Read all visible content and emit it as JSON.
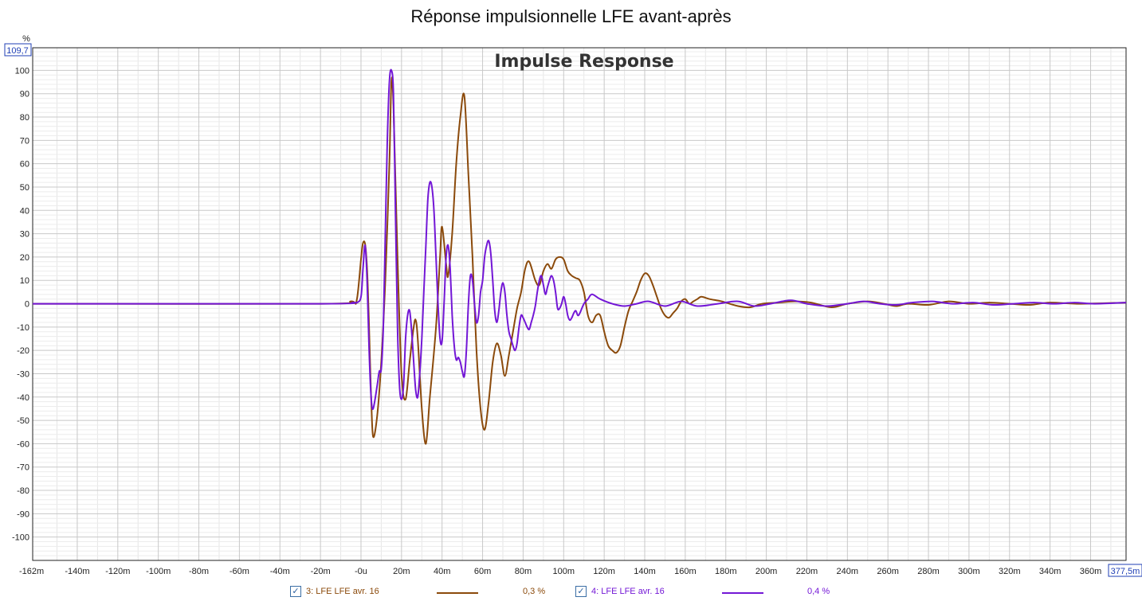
{
  "page_title": "Réponse impulsionnelle LFE avant-après",
  "chart_data": {
    "type": "line",
    "title": "Impulse Response",
    "y_unit": "%",
    "xlim": [
      -162,
      377.5
    ],
    "ylim": [
      -110,
      109.7
    ],
    "x_end_label": "-162m",
    "x_max_label": "377,5m",
    "y_max_label": "109,7",
    "x_ticks": [
      {
        "v": -140,
        "label": "-140m"
      },
      {
        "v": -120,
        "label": "-120m"
      },
      {
        "v": -100,
        "label": "-100m"
      },
      {
        "v": -80,
        "label": "-80m"
      },
      {
        "v": -60,
        "label": "-60m"
      },
      {
        "v": -40,
        "label": "-40m"
      },
      {
        "v": -20,
        "label": "-20m"
      },
      {
        "v": 0,
        "label": "-0u"
      },
      {
        "v": 20,
        "label": "20m"
      },
      {
        "v": 40,
        "label": "40m"
      },
      {
        "v": 60,
        "label": "60m"
      },
      {
        "v": 80,
        "label": "80m"
      },
      {
        "v": 100,
        "label": "100m"
      },
      {
        "v": 120,
        "label": "120m"
      },
      {
        "v": 140,
        "label": "140m"
      },
      {
        "v": 160,
        "label": "160m"
      },
      {
        "v": 180,
        "label": "180m"
      },
      {
        "v": 200,
        "label": "200m"
      },
      {
        "v": 220,
        "label": "220m"
      },
      {
        "v": 240,
        "label": "240m"
      },
      {
        "v": 260,
        "label": "260m"
      },
      {
        "v": 280,
        "label": "280m"
      },
      {
        "v": 300,
        "label": "300m"
      },
      {
        "v": 320,
        "label": "320m"
      },
      {
        "v": 340,
        "label": "340m"
      },
      {
        "v": 360,
        "label": "360m"
      }
    ],
    "y_ticks": [
      100,
      90,
      80,
      70,
      60,
      50,
      40,
      30,
      20,
      10,
      0,
      -10,
      -20,
      -30,
      -40,
      -50,
      -60,
      -70,
      -80,
      -90,
      -100
    ],
    "grid": true,
    "legend_position": "bottom",
    "series": [
      {
        "name": "3: LFE LFE avr. 16",
        "value_label": "0,3 %",
        "color": "#8b4a0b",
        "points": [
          [
            -162,
            0
          ],
          [
            -20,
            0
          ],
          [
            -5,
            1
          ],
          [
            -2,
            2
          ],
          [
            1,
            26
          ],
          [
            3,
            15
          ],
          [
            5,
            -40
          ],
          [
            6,
            -57
          ],
          [
            8,
            -48
          ],
          [
            10,
            -25
          ],
          [
            12,
            10
          ],
          [
            14,
            60
          ],
          [
            15,
            95
          ],
          [
            16,
            85
          ],
          [
            18,
            20
          ],
          [
            20,
            -30
          ],
          [
            22,
            -41
          ],
          [
            24,
            -25
          ],
          [
            26,
            -10
          ],
          [
            27,
            -7
          ],
          [
            28,
            -15
          ],
          [
            30,
            -45
          ],
          [
            32,
            -60
          ],
          [
            34,
            -40
          ],
          [
            37,
            -10
          ],
          [
            39,
            20
          ],
          [
            40,
            33
          ],
          [
            42,
            17
          ],
          [
            43,
            12
          ],
          [
            45,
            30
          ],
          [
            47,
            60
          ],
          [
            49,
            80
          ],
          [
            51,
            89
          ],
          [
            53,
            55
          ],
          [
            55,
            20
          ],
          [
            57,
            -20
          ],
          [
            59,
            -45
          ],
          [
            61,
            -54
          ],
          [
            63,
            -42
          ],
          [
            65,
            -25
          ],
          [
            67,
            -17
          ],
          [
            69,
            -22
          ],
          [
            71,
            -31
          ],
          [
            73,
            -22
          ],
          [
            75,
            -12
          ],
          [
            77,
            -2
          ],
          [
            79,
            5
          ],
          [
            81,
            15
          ],
          [
            83,
            18
          ],
          [
            86,
            10
          ],
          [
            88,
            8
          ],
          [
            90,
            14
          ],
          [
            92,
            17
          ],
          [
            94,
            15
          ],
          [
            96,
            19
          ],
          [
            98,
            20
          ],
          [
            100,
            19
          ],
          [
            102,
            14
          ],
          [
            104,
            12
          ],
          [
            106,
            11
          ],
          [
            108,
            10
          ],
          [
            110,
            5
          ],
          [
            112,
            -5
          ],
          [
            114,
            -8
          ],
          [
            116,
            -5
          ],
          [
            118,
            -5
          ],
          [
            120,
            -12
          ],
          [
            122,
            -18
          ],
          [
            124,
            -20
          ],
          [
            126,
            -21
          ],
          [
            128,
            -18
          ],
          [
            130,
            -10
          ],
          [
            132,
            -3
          ],
          [
            134,
            1
          ],
          [
            136,
            5
          ],
          [
            138,
            10
          ],
          [
            140,
            13
          ],
          [
            142,
            12
          ],
          [
            144,
            8
          ],
          [
            146,
            3
          ],
          [
            148,
            -2
          ],
          [
            150,
            -5
          ],
          [
            152,
            -6
          ],
          [
            154,
            -4
          ],
          [
            156,
            -2
          ],
          [
            158,
            1
          ],
          [
            160,
            2
          ],
          [
            162,
            0
          ],
          [
            164,
            1
          ],
          [
            166,
            2
          ],
          [
            168,
            3
          ],
          [
            172,
            2
          ],
          [
            178,
            1
          ],
          [
            186,
            -1
          ],
          [
            192,
            -1.5
          ],
          [
            198,
            0
          ],
          [
            206,
            0.5
          ],
          [
            214,
            1
          ],
          [
            222,
            0.5
          ],
          [
            232,
            -1.5
          ],
          [
            240,
            0
          ],
          [
            250,
            1
          ],
          [
            258,
            0
          ],
          [
            264,
            -1
          ],
          [
            270,
            0
          ],
          [
            280,
            -0.5
          ],
          [
            290,
            1
          ],
          [
            300,
            0
          ],
          [
            310,
            0.5
          ],
          [
            320,
            0
          ],
          [
            330,
            -0.5
          ],
          [
            340,
            0.5
          ],
          [
            355,
            0
          ],
          [
            377.5,
            0.5
          ]
        ]
      },
      {
        "name": "4: LFE LFE avr. 16",
        "value_label": "0,4 %",
        "color": "#7317d6",
        "points": [
          [
            -162,
            0
          ],
          [
            -20,
            0
          ],
          [
            -4,
            0.5
          ],
          [
            -2,
            0.5
          ],
          [
            0,
            3
          ],
          [
            1,
            15
          ],
          [
            2,
            25
          ],
          [
            3,
            10
          ],
          [
            4,
            -20
          ],
          [
            5,
            -40
          ],
          [
            6,
            -45
          ],
          [
            8,
            -35
          ],
          [
            9,
            -29
          ],
          [
            10,
            -28
          ],
          [
            11,
            -10
          ],
          [
            12,
            30
          ],
          [
            13,
            70
          ],
          [
            14,
            95
          ],
          [
            15,
            100
          ],
          [
            16,
            90
          ],
          [
            17,
            40
          ],
          [
            18,
            -10
          ],
          [
            19,
            -35
          ],
          [
            20,
            -41
          ],
          [
            21,
            -35
          ],
          [
            22,
            -15
          ],
          [
            23,
            -5
          ],
          [
            24,
            -3
          ],
          [
            25,
            -12
          ],
          [
            26,
            -25
          ],
          [
            27,
            -37
          ],
          [
            28,
            -40
          ],
          [
            29,
            -30
          ],
          [
            30,
            -15
          ],
          [
            31,
            5
          ],
          [
            32,
            25
          ],
          [
            33,
            45
          ],
          [
            34,
            52
          ],
          [
            35,
            50
          ],
          [
            36,
            40
          ],
          [
            37,
            20
          ],
          [
            38,
            0
          ],
          [
            39,
            -15
          ],
          [
            40,
            -16
          ],
          [
            41,
            0
          ],
          [
            42,
            20
          ],
          [
            43,
            25
          ],
          [
            44,
            15
          ],
          [
            45,
            -5
          ],
          [
            46,
            -18
          ],
          [
            47,
            -24
          ],
          [
            48,
            -23
          ],
          [
            49,
            -25
          ],
          [
            50,
            -29
          ],
          [
            51,
            -31
          ],
          [
            52,
            -20
          ],
          [
            53,
            0
          ],
          [
            54,
            12
          ],
          [
            55,
            10
          ],
          [
            56,
            0
          ],
          [
            57,
            -8
          ],
          [
            58,
            -5
          ],
          [
            59,
            5
          ],
          [
            60,
            10
          ],
          [
            61,
            20
          ],
          [
            62,
            25
          ],
          [
            63,
            27
          ],
          [
            64,
            22
          ],
          [
            65,
            10
          ],
          [
            66,
            -3
          ],
          [
            67,
            -8
          ],
          [
            68,
            -3
          ],
          [
            69,
            5
          ],
          [
            70,
            9
          ],
          [
            71,
            5
          ],
          [
            72,
            -5
          ],
          [
            73,
            -12
          ],
          [
            74,
            -15
          ],
          [
            75,
            -18
          ],
          [
            76,
            -20
          ],
          [
            77,
            -17
          ],
          [
            78,
            -10
          ],
          [
            79,
            -5
          ],
          [
            80,
            -6
          ],
          [
            81,
            -8
          ],
          [
            82,
            -10
          ],
          [
            83,
            -11
          ],
          [
            84,
            -8
          ],
          [
            85,
            -5
          ],
          [
            86,
            -1
          ],
          [
            87,
            5
          ],
          [
            88,
            10
          ],
          [
            89,
            12
          ],
          [
            90,
            8
          ],
          [
            91,
            4
          ],
          [
            92,
            7
          ],
          [
            93,
            10
          ],
          [
            94,
            12
          ],
          [
            95,
            10
          ],
          [
            96,
            5
          ],
          [
            97,
            -2
          ],
          [
            98,
            -2
          ],
          [
            99,
            0
          ],
          [
            100,
            3
          ],
          [
            101,
            0
          ],
          [
            102,
            -5
          ],
          [
            103,
            -7
          ],
          [
            104,
            -6
          ],
          [
            105,
            -4
          ],
          [
            106,
            -3
          ],
          [
            107,
            -5
          ],
          [
            108,
            -4
          ],
          [
            110,
            0
          ],
          [
            112,
            2
          ],
          [
            114,
            4
          ],
          [
            118,
            2
          ],
          [
            124,
            0
          ],
          [
            130,
            -1
          ],
          [
            136,
            0
          ],
          [
            142,
            1
          ],
          [
            150,
            -1
          ],
          [
            158,
            1
          ],
          [
            166,
            -1
          ],
          [
            176,
            0
          ],
          [
            186,
            1
          ],
          [
            194,
            -1
          ],
          [
            202,
            0
          ],
          [
            212,
            1.5
          ],
          [
            220,
            0
          ],
          [
            230,
            -1
          ],
          [
            240,
            0
          ],
          [
            248,
            1
          ],
          [
            256,
            0
          ],
          [
            264,
            -0.5
          ],
          [
            272,
            0.5
          ],
          [
            282,
            1
          ],
          [
            292,
            0
          ],
          [
            302,
            0.5
          ],
          [
            312,
            -0.5
          ],
          [
            322,
            0
          ],
          [
            332,
            0.5
          ],
          [
            342,
            0
          ],
          [
            352,
            0.5
          ],
          [
            362,
            0
          ],
          [
            377.5,
            0.5
          ]
        ]
      }
    ]
  }
}
